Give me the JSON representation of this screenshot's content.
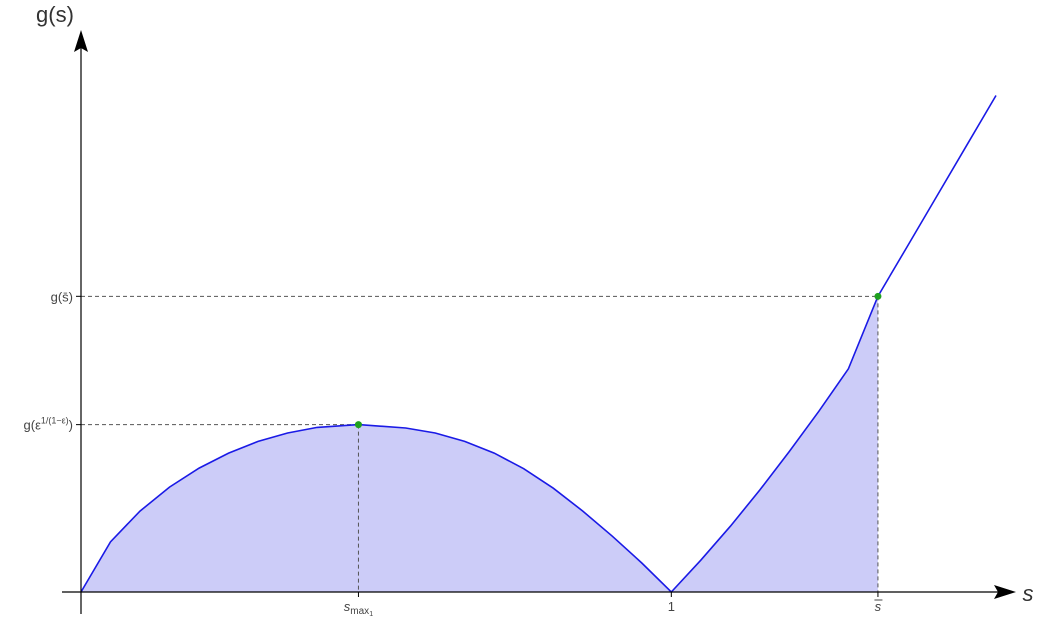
{
  "chart_data": {
    "type": "area",
    "title": "",
    "xlabel": "s",
    "ylabel": "g(s)",
    "x_ticks": [
      {
        "label": "s",
        "sub": "max",
        "subsub": "1",
        "x": 0.47
      },
      {
        "label": "1",
        "x": 1.0
      },
      {
        "label": "s",
        "overline": true,
        "x": 1.35
      }
    ],
    "y_ticks": [
      {
        "label": "g(s̄)",
        "y": 0.53
      },
      {
        "label_base": "g(ε",
        "label_sup": "1/(1−ε)",
        "label_tail": ")",
        "y": 0.3
      }
    ],
    "series": [
      {
        "curve": "g(s)",
        "x": [
          0,
          0.05,
          0.1,
          0.15,
          0.2,
          0.25,
          0.3,
          0.35,
          0.4,
          0.47,
          0.55,
          0.6,
          0.65,
          0.7,
          0.75,
          0.8,
          0.85,
          0.9,
          0.95,
          1.0,
          1.05,
          1.1,
          1.15,
          1.2,
          1.25,
          1.3,
          1.35,
          1.4,
          1.45,
          1.5,
          1.55
        ],
        "y": [
          0,
          0.09,
          0.145,
          0.188,
          0.222,
          0.249,
          0.27,
          0.285,
          0.295,
          0.3,
          0.294,
          0.285,
          0.27,
          0.249,
          0.221,
          0.186,
          0.145,
          0.1,
          0.052,
          0,
          0.057,
          0.118,
          0.183,
          0.252,
          0.324,
          0.4,
          0.53,
          0.62,
          0.71,
          0.8,
          0.89
        ]
      }
    ],
    "shaded_region": {
      "from_x": 0,
      "to_x": 1.35
    },
    "highlight_points": [
      {
        "x": 0.47,
        "y": 0.3
      },
      {
        "x": 1.35,
        "y": 0.53
      }
    ],
    "xlim": [
      0,
      1.55
    ],
    "ylim": [
      0,
      0.95
    ],
    "grid": false,
    "colors": {
      "curve": "#1a1ae6",
      "fill": "#ccccf8",
      "point": "#1fa01f",
      "axis": "#000000",
      "dash": "#555555"
    }
  }
}
